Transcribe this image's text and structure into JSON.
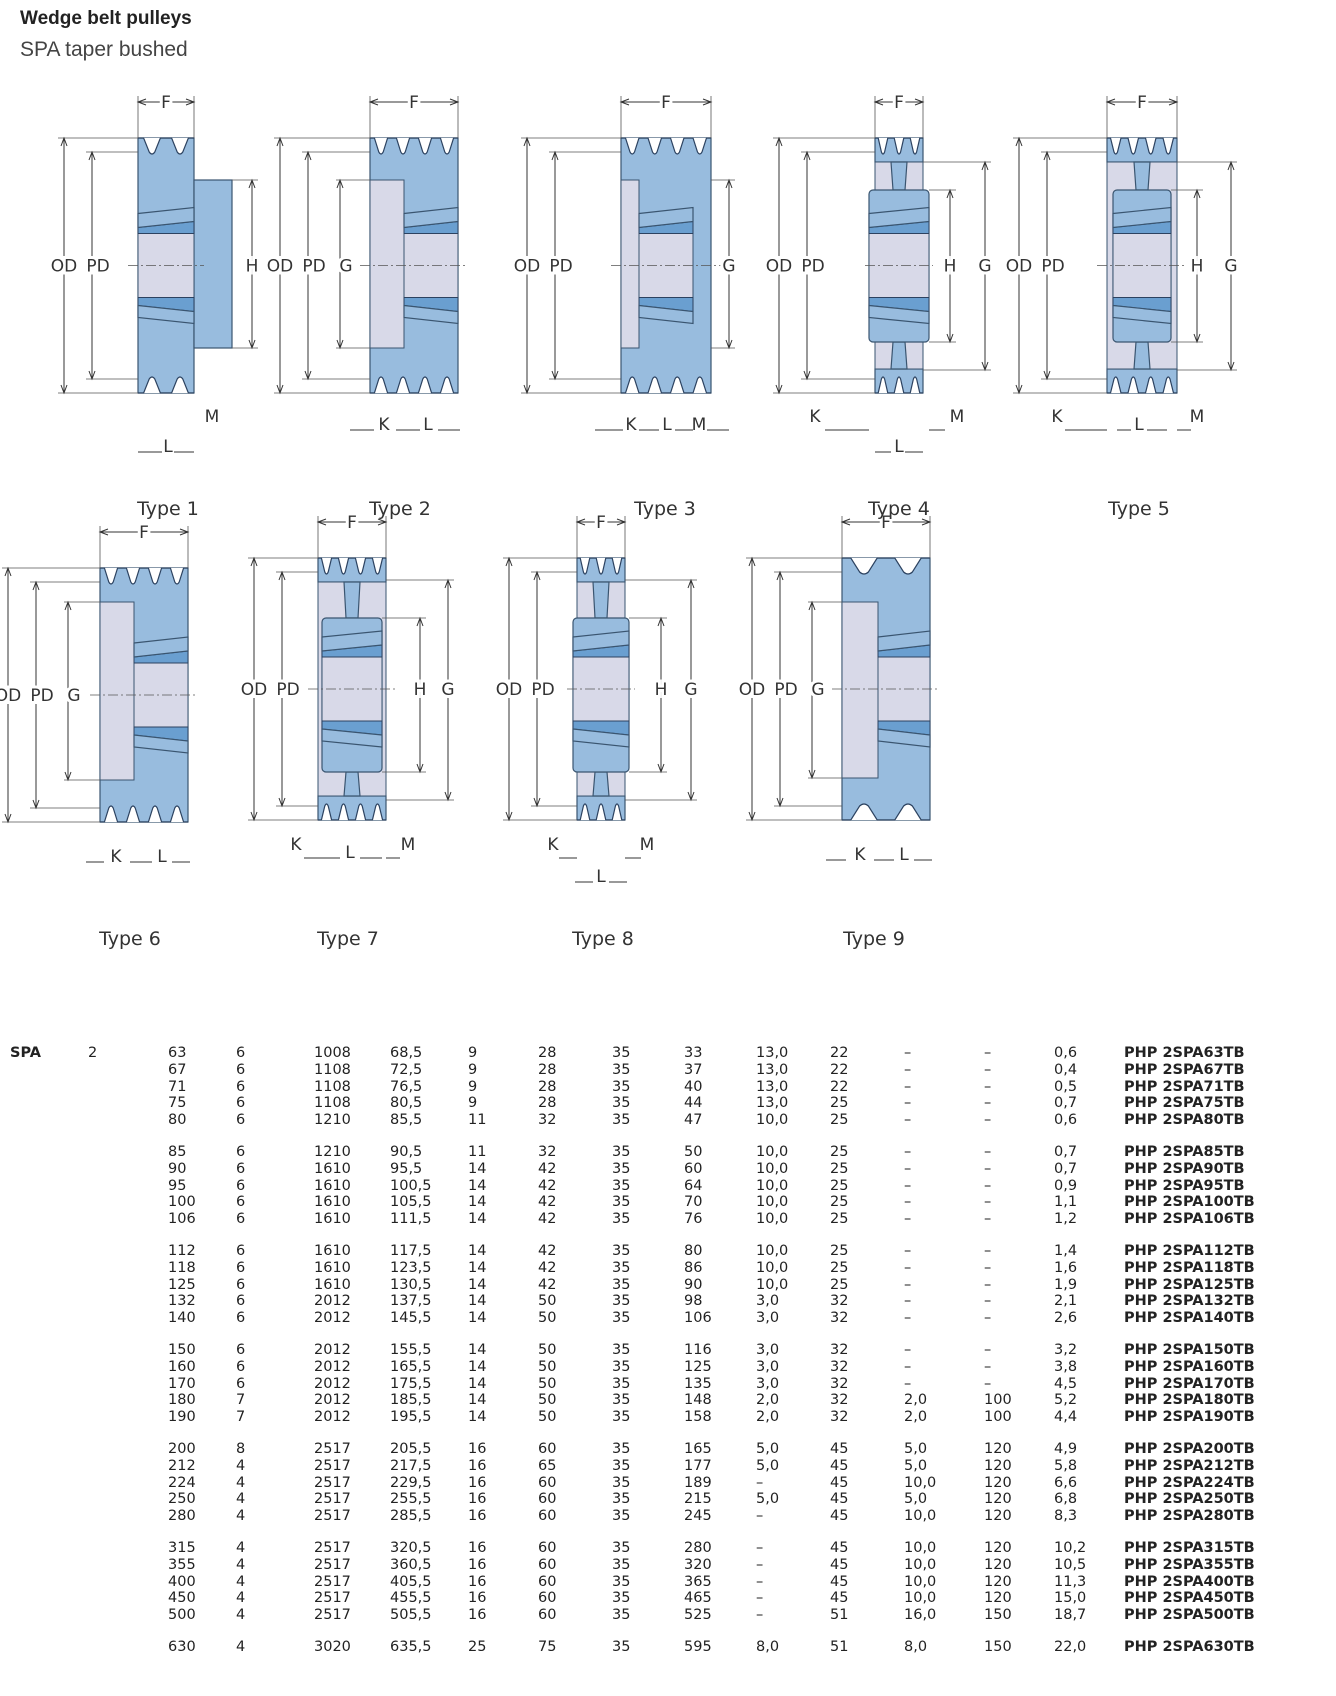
{
  "header": {
    "title": "Wedge belt pulleys",
    "subtitle": "SPA taper bushed"
  },
  "diagrams": {
    "types": [
      "Type 1",
      "Type 2",
      "Type 3",
      "Type 4",
      "Type 5",
      "Type 6",
      "Type 7",
      "Type 8",
      "Type 9"
    ],
    "dims": {
      "F": "F",
      "OD": "OD",
      "PD": "PD",
      "G": "G",
      "H": "H",
      "K": "K",
      "L": "L",
      "M": "M"
    }
  },
  "table": {
    "section": "SPA",
    "grooves": "2",
    "rows": [
      [
        "63",
        "6",
        "1008",
        "68,5",
        "9",
        "28",
        "35",
        "33",
        "13,0",
        "22",
        "–",
        "–",
        "0,6",
        "PHP 2SPA63TB"
      ],
      [
        "67",
        "6",
        "1108",
        "72,5",
        "9",
        "28",
        "35",
        "37",
        "13,0",
        "22",
        "–",
        "–",
        "0,4",
        "PHP 2SPA67TB"
      ],
      [
        "71",
        "6",
        "1108",
        "76,5",
        "9",
        "28",
        "35",
        "40",
        "13,0",
        "22",
        "–",
        "–",
        "0,5",
        "PHP 2SPA71TB"
      ],
      [
        "75",
        "6",
        "1108",
        "80,5",
        "9",
        "28",
        "35",
        "44",
        "13,0",
        "25",
        "–",
        "–",
        "0,7",
        "PHP 2SPA75TB"
      ],
      [
        "80",
        "6",
        "1210",
        "85,5",
        "11",
        "32",
        "35",
        "47",
        "10,0",
        "25",
        "–",
        "–",
        "0,6",
        "PHP 2SPA80TB"
      ],
      [
        "85",
        "6",
        "1210",
        "90,5",
        "11",
        "32",
        "35",
        "50",
        "10,0",
        "25",
        "–",
        "–",
        "0,7",
        "PHP 2SPA85TB"
      ],
      [
        "90",
        "6",
        "1610",
        "95,5",
        "14",
        "42",
        "35",
        "60",
        "10,0",
        "25",
        "–",
        "–",
        "0,7",
        "PHP 2SPA90TB"
      ],
      [
        "95",
        "6",
        "1610",
        "100,5",
        "14",
        "42",
        "35",
        "64",
        "10,0",
        "25",
        "–",
        "–",
        "0,9",
        "PHP 2SPA95TB"
      ],
      [
        "100",
        "6",
        "1610",
        "105,5",
        "14",
        "42",
        "35",
        "70",
        "10,0",
        "25",
        "–",
        "–",
        "1,1",
        "PHP 2SPA100TB"
      ],
      [
        "106",
        "6",
        "1610",
        "111,5",
        "14",
        "42",
        "35",
        "76",
        "10,0",
        "25",
        "–",
        "–",
        "1,2",
        "PHP 2SPA106TB"
      ],
      [
        "112",
        "6",
        "1610",
        "117,5",
        "14",
        "42",
        "35",
        "80",
        "10,0",
        "25",
        "–",
        "–",
        "1,4",
        "PHP 2SPA112TB"
      ],
      [
        "118",
        "6",
        "1610",
        "123,5",
        "14",
        "42",
        "35",
        "86",
        "10,0",
        "25",
        "–",
        "–",
        "1,6",
        "PHP 2SPA118TB"
      ],
      [
        "125",
        "6",
        "1610",
        "130,5",
        "14",
        "42",
        "35",
        "90",
        "10,0",
        "25",
        "–",
        "–",
        "1,9",
        "PHP 2SPA125TB"
      ],
      [
        "132",
        "6",
        "2012",
        "137,5",
        "14",
        "50",
        "35",
        "98",
        "3,0",
        "32",
        "–",
        "–",
        "2,1",
        "PHP 2SPA132TB"
      ],
      [
        "140",
        "6",
        "2012",
        "145,5",
        "14",
        "50",
        "35",
        "106",
        "3,0",
        "32",
        "–",
        "–",
        "2,6",
        "PHP 2SPA140TB"
      ],
      [
        "150",
        "6",
        "2012",
        "155,5",
        "14",
        "50",
        "35",
        "116",
        "3,0",
        "32",
        "–",
        "–",
        "3,2",
        "PHP 2SPA150TB"
      ],
      [
        "160",
        "6",
        "2012",
        "165,5",
        "14",
        "50",
        "35",
        "125",
        "3,0",
        "32",
        "–",
        "–",
        "3,8",
        "PHP 2SPA160TB"
      ],
      [
        "170",
        "6",
        "2012",
        "175,5",
        "14",
        "50",
        "35",
        "135",
        "3,0",
        "32",
        "–",
        "–",
        "4,5",
        "PHP 2SPA170TB"
      ],
      [
        "180",
        "7",
        "2012",
        "185,5",
        "14",
        "50",
        "35",
        "148",
        "2,0",
        "32",
        "2,0",
        "100",
        "5,2",
        "PHP 2SPA180TB"
      ],
      [
        "190",
        "7",
        "2012",
        "195,5",
        "14",
        "50",
        "35",
        "158",
        "2,0",
        "32",
        "2,0",
        "100",
        "4,4",
        "PHP 2SPA190TB"
      ],
      [
        "200",
        "8",
        "2517",
        "205,5",
        "16",
        "60",
        "35",
        "165",
        "5,0",
        "45",
        "5,0",
        "120",
        "4,9",
        "PHP 2SPA200TB"
      ],
      [
        "212",
        "4",
        "2517",
        "217,5",
        "16",
        "65",
        "35",
        "177",
        "5,0",
        "45",
        "5,0",
        "120",
        "5,8",
        "PHP 2SPA212TB"
      ],
      [
        "224",
        "4",
        "2517",
        "229,5",
        "16",
        "60",
        "35",
        "189",
        "–",
        "45",
        "10,0",
        "120",
        "6,6",
        "PHP 2SPA224TB"
      ],
      [
        "250",
        "4",
        "2517",
        "255,5",
        "16",
        "60",
        "35",
        "215",
        "5,0",
        "45",
        "5,0",
        "120",
        "6,8",
        "PHP 2SPA250TB"
      ],
      [
        "280",
        "4",
        "2517",
        "285,5",
        "16",
        "60",
        "35",
        "245",
        "–",
        "45",
        "10,0",
        "120",
        "8,3",
        "PHP 2SPA280TB"
      ],
      [
        "315",
        "4",
        "2517",
        "320,5",
        "16",
        "60",
        "35",
        "280",
        "–",
        "45",
        "10,0",
        "120",
        "10,2",
        "PHP 2SPA315TB"
      ],
      [
        "355",
        "4",
        "2517",
        "360,5",
        "16",
        "60",
        "35",
        "320",
        "–",
        "45",
        "10,0",
        "120",
        "10,5",
        "PHP 2SPA355TB"
      ],
      [
        "400",
        "4",
        "2517",
        "405,5",
        "16",
        "60",
        "35",
        "365",
        "–",
        "45",
        "10,0",
        "120",
        "11,3",
        "PHP 2SPA400TB"
      ],
      [
        "450",
        "4",
        "2517",
        "455,5",
        "16",
        "60",
        "35",
        "465",
        "–",
        "45",
        "10,0",
        "120",
        "15,0",
        "PHP 2SPA450TB"
      ],
      [
        "500",
        "4",
        "2517",
        "505,5",
        "16",
        "60",
        "35",
        "525",
        "–",
        "51",
        "16,0",
        "150",
        "18,7",
        "PHP 2SPA500TB"
      ],
      [
        "630",
        "4",
        "3020",
        "635,5",
        "25",
        "75",
        "35",
        "595",
        "8,0",
        "51",
        "8,0",
        "150",
        "22,0",
        "PHP 2SPA630TB"
      ]
    ]
  }
}
